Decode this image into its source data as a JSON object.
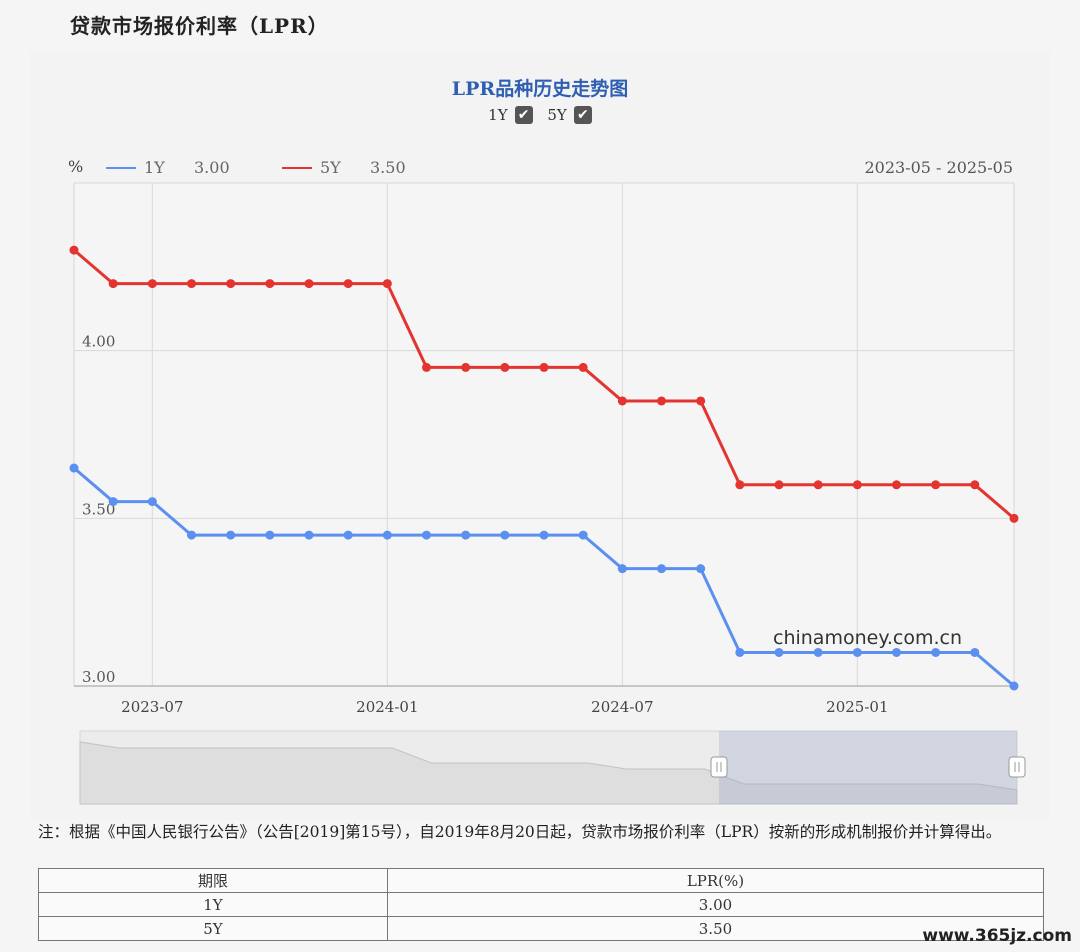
{
  "page": {
    "title": "贷款市场报价利率（LPR）"
  },
  "chart_toggles": [
    {
      "label": "1Y",
      "checked": true
    },
    {
      "label": "5Y",
      "checked": true
    }
  ],
  "chart_data": {
    "type": "line",
    "title": "LPR品种历史走势图",
    "ylabel": "%",
    "range_label": "2023-05 - 2025-05",
    "watermark": "chinamoney.com.cn",
    "ylim": [
      3.0,
      4.5
    ],
    "y_ticks": [
      "3.00",
      "3.50",
      "4.00"
    ],
    "x_ticks": [
      "2023-07",
      "2024-01",
      "2024-07",
      "2025-01"
    ],
    "x": [
      "2023-05",
      "2023-06",
      "2023-07",
      "2023-08",
      "2023-09",
      "2023-10",
      "2023-11",
      "2023-12",
      "2024-01",
      "2024-02",
      "2024-03",
      "2024-04",
      "2024-05",
      "2024-06",
      "2024-07",
      "2024-08",
      "2024-09",
      "2024-10",
      "2024-11",
      "2024-12",
      "2025-01",
      "2025-02",
      "2025-03",
      "2025-04",
      "2025-05"
    ],
    "series": [
      {
        "name": "1Y",
        "latest": "3.00",
        "color": "#5b8ff0",
        "values": [
          3.65,
          3.55,
          3.55,
          3.45,
          3.45,
          3.45,
          3.45,
          3.45,
          3.45,
          3.45,
          3.45,
          3.45,
          3.45,
          3.45,
          3.35,
          3.35,
          3.35,
          3.1,
          3.1,
          3.1,
          3.1,
          3.1,
          3.1,
          3.1,
          3.0
        ]
      },
      {
        "name": "5Y",
        "latest": "3.50",
        "color": "#e3342f",
        "values": [
          4.3,
          4.2,
          4.2,
          4.2,
          4.2,
          4.2,
          4.2,
          4.2,
          4.2,
          3.95,
          3.95,
          3.95,
          3.95,
          3.95,
          3.85,
          3.85,
          3.85,
          3.6,
          3.6,
          3.6,
          3.6,
          3.6,
          3.6,
          3.6,
          3.5
        ]
      }
    ]
  },
  "note": "注：根据《中国人民银行公告》（公告[2019]第15号），自2019年8月20日起，贷款市场报价利率（LPR）按新的形成机制报价并计算得出。",
  "table": {
    "headers": [
      "期限",
      "LPR(%)"
    ],
    "rows": [
      [
        "1Y",
        "3.00"
      ],
      [
        "5Y",
        "3.50"
      ]
    ]
  },
  "site_watermark": "www.365jz.com"
}
